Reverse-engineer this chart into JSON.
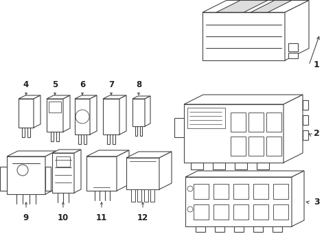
{
  "bg_color": "#ffffff",
  "line_color": "#444444",
  "line_width": 0.8,
  "label_fontsize": 8,
  "label_color": "#222222",
  "fig_w": 4.89,
  "fig_h": 3.6,
  "dpi": 100
}
